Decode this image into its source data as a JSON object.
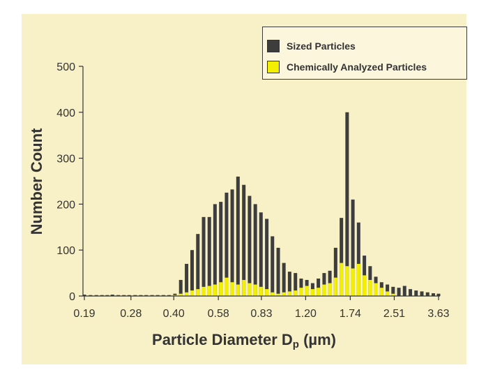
{
  "chart_data": {
    "type": "bar",
    "xlabel_main": "Particle Diameter D",
    "xlabel_sub": "p",
    "xlabel_unit": "(µm)",
    "ylabel": "Number Count",
    "ylim": [
      0,
      500
    ],
    "yticks": [
      "0",
      "100",
      "200",
      "300",
      "400",
      "500"
    ],
    "xticks": [
      "0.19",
      "0.28",
      "0.40",
      "0.58",
      "0.83",
      "1.20",
      "1.74",
      "2.51",
      "3.63"
    ],
    "xlim_log": [
      0.19,
      3.63
    ],
    "grid": false,
    "legend_position": "top-right",
    "series": [
      {
        "name": "Sized Particles",
        "color": "#3d3d3d",
        "x": [
          0.19,
          0.2,
          0.21,
          0.22,
          0.23,
          0.24,
          0.252,
          0.264,
          0.276,
          0.29,
          0.304,
          0.318,
          0.334,
          0.35,
          0.367,
          0.385,
          0.404,
          0.424,
          0.445,
          0.466,
          0.489,
          0.513,
          0.538,
          0.564,
          0.592,
          0.621,
          0.651,
          0.683,
          0.717,
          0.752,
          0.789,
          0.827,
          0.868,
          0.91,
          0.955,
          1.001,
          1.05,
          1.102,
          1.156,
          1.212,
          1.272,
          1.334,
          1.4,
          1.468,
          1.54,
          1.616,
          1.695,
          1.778,
          1.865,
          1.957,
          2.053,
          2.153,
          2.259,
          2.37,
          2.486,
          2.608,
          2.735,
          2.87,
          3.01,
          3.158,
          3.313,
          3.475,
          3.63
        ],
        "values": [
          3,
          2,
          2,
          2,
          2,
          3,
          2,
          2,
          2,
          2,
          2,
          2,
          2,
          2,
          2,
          2,
          5,
          35,
          70,
          100,
          135,
          172,
          172,
          200,
          205,
          225,
          232,
          260,
          242,
          218,
          200,
          182,
          168,
          130,
          105,
          72,
          53,
          50,
          38,
          35,
          28,
          38,
          50,
          55,
          105,
          170,
          400,
          210,
          160,
          88,
          65,
          42,
          30,
          25,
          20,
          18,
          22,
          15,
          12,
          10,
          8,
          6,
          5
        ]
      },
      {
        "name": "Chemically Analyzed Particles",
        "color": "#f2ef00",
        "x": [
          0.404,
          0.424,
          0.445,
          0.466,
          0.489,
          0.513,
          0.538,
          0.564,
          0.592,
          0.621,
          0.651,
          0.683,
          0.717,
          0.752,
          0.789,
          0.827,
          0.868,
          0.91,
          0.955,
          1.001,
          1.05,
          1.102,
          1.156,
          1.212,
          1.272,
          1.334,
          1.4,
          1.468,
          1.54,
          1.616,
          1.695,
          1.778,
          1.865,
          1.957,
          2.053,
          2.153,
          2.259,
          2.37,
          2.486
        ],
        "values": [
          2,
          5,
          8,
          12,
          15,
          20,
          22,
          25,
          30,
          40,
          30,
          25,
          35,
          28,
          25,
          20,
          15,
          8,
          5,
          8,
          10,
          12,
          18,
          22,
          15,
          18,
          25,
          28,
          40,
          72,
          65,
          60,
          70,
          45,
          35,
          28,
          18,
          10,
          5
        ]
      }
    ]
  }
}
